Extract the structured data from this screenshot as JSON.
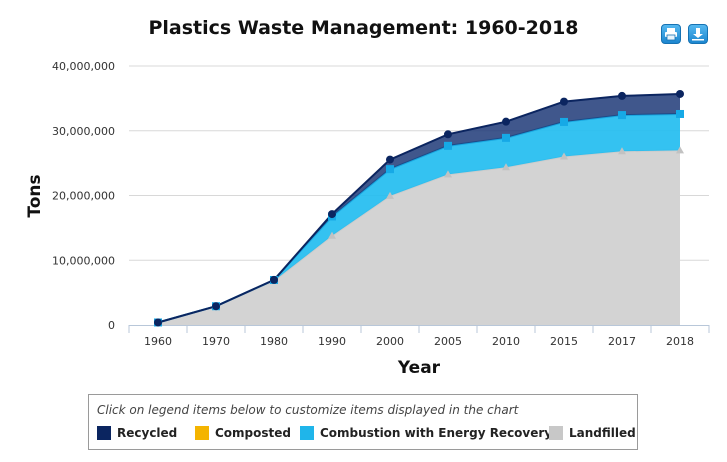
{
  "chart_data": {
    "type": "area",
    "title": "Plastics Waste Management: 1960-2018",
    "xlabel": "Year",
    "ylabel": "Tons",
    "categories": [
      "1960",
      "1970",
      "1980",
      "1990",
      "2000",
      "2005",
      "2010",
      "2015",
      "2017",
      "2018"
    ],
    "ylim": [
      0,
      40000000
    ],
    "yticks": [
      "0",
      "10,000,000",
      "20,000,000",
      "30,000,000",
      "40,000,000"
    ],
    "ytick_values": [
      0,
      10000000,
      20000000,
      30000000,
      40000000
    ],
    "stacked": true,
    "grid": true,
    "legend_position": "bottom",
    "series": [
      {
        "name": "Landfilled",
        "color": "#d3d3d3",
        "marker": "triangle",
        "values": [
          390000,
          2900000,
          6810000,
          13780000,
          19950000,
          23270000,
          24370000,
          26030000,
          26830000,
          26970000
        ]
      },
      {
        "name": "Combustion with Energy Recovery",
        "color": "#1fb5ea",
        "marker": "square",
        "values": [
          0,
          0,
          140000,
          2980000,
          4120000,
          4400000,
          4530000,
          5330000,
          5590000,
          5620000
        ]
      },
      {
        "name": "Composted",
        "color": "#f4b400",
        "marker": "diamond",
        "values": [
          0,
          0,
          0,
          0,
          0,
          0,
          0,
          0,
          0,
          0
        ]
      },
      {
        "name": "Recycled",
        "color": "#0b2560",
        "marker": "circle",
        "values": [
          0,
          0,
          20000,
          370000,
          1480000,
          1780000,
          2500000,
          3140000,
          2960000,
          3090000
        ]
      }
    ]
  },
  "legend": {
    "caption": "Click on legend items below to customize items displayed in the chart",
    "items": [
      {
        "label": "Recycled",
        "color": "#0b2560"
      },
      {
        "label": "Composted",
        "color": "#f4b400"
      },
      {
        "label": "Combustion with Energy Recovery",
        "color": "#1fb5ea"
      },
      {
        "label": "Landfilled",
        "color": "#c8c8c8"
      }
    ]
  },
  "toolbar": {
    "print_icon": "printer-icon",
    "download_icon": "download-icon"
  }
}
